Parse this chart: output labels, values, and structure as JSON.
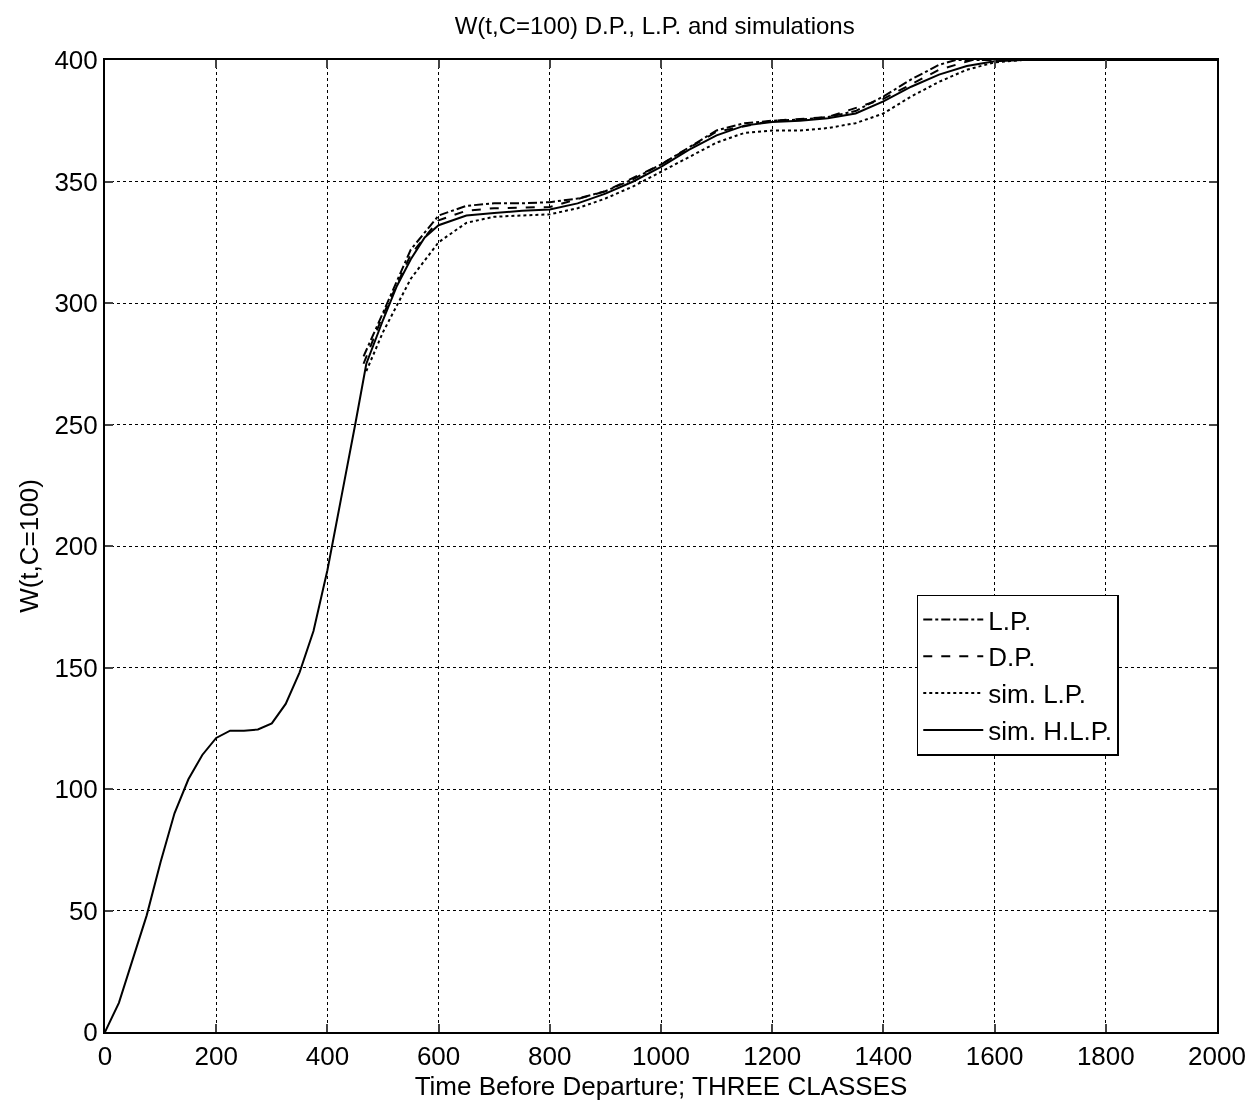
{
  "chart_data": {
    "type": "line",
    "title": "W(t,C=100) D.P., L.P. and simulations",
    "xlabel": "Time Before Departure; THREE CLASSES",
    "ylabel": "W(t,C=100)",
    "xlim": [
      0,
      2000
    ],
    "xticks": [
      0,
      200,
      400,
      600,
      800,
      1000,
      1200,
      1400,
      1600,
      1800,
      2000
    ],
    "ylim": [
      0,
      400
    ],
    "yticks": [
      0,
      50,
      100,
      150,
      200,
      250,
      300,
      350,
      400
    ],
    "grid": true,
    "legend": "right",
    "marker": "none",
    "series": [
      {
        "name": "L.P.",
        "color": "#000000",
        "line_style": "dashdot",
        "x": [
          465,
          500,
          550,
          600,
          650,
          700,
          750,
          800,
          850,
          900,
          950,
          1000,
          1050,
          1100,
          1150,
          1200,
          1250,
          1300,
          1350,
          1400,
          1450,
          1500,
          1530,
          2000
        ],
        "values": [
          278,
          296,
          322,
          336,
          340,
          341,
          341,
          341.5,
          343,
          346,
          351,
          357,
          364,
          371,
          374,
          375,
          375.5,
          376.5,
          379,
          385,
          392,
          398,
          400,
          400
        ]
      },
      {
        "name": "D.P.",
        "color": "#000000",
        "line_style": "dashed",
        "x": [
          465,
          500,
          550,
          600,
          650,
          700,
          800,
          900,
          1000,
          1100,
          1200,
          1300,
          1400,
          1500,
          1560,
          2000
        ],
        "values": [
          275,
          295,
          320,
          334,
          338,
          339,
          339.5,
          346,
          357,
          370.5,
          375,
          376.5,
          384,
          396,
          400,
          400
        ]
      },
      {
        "name": "sim. L.P.",
        "color": "#000000",
        "line_style": "dotted",
        "x": [
          470,
          500,
          550,
          600,
          650,
          700,
          750,
          800,
          850,
          900,
          950,
          1000,
          1050,
          1100,
          1150,
          1200,
          1250,
          1300,
          1350,
          1400,
          1450,
          1500,
          1550,
          1600,
          1650,
          2000
        ],
        "values": [
          272,
          288,
          310,
          325,
          333,
          335.5,
          336,
          336.5,
          339,
          343,
          348,
          354,
          360,
          366,
          370,
          371,
          371,
          372,
          374,
          378,
          385,
          391,
          396,
          399,
          400,
          400
        ]
      },
      {
        "name": "sim. H.L.P.",
        "color": "#000000",
        "line_style": "solid",
        "x": [
          0,
          25,
          50,
          75,
          100,
          125,
          150,
          175,
          200,
          225,
          250,
          275,
          300,
          325,
          350,
          375,
          400,
          425,
          450,
          470,
          500,
          525,
          550,
          575,
          600,
          650,
          700,
          750,
          800,
          850,
          900,
          950,
          1000,
          1050,
          1100,
          1150,
          1200,
          1250,
          1300,
          1350,
          1400,
          1450,
          1500,
          1550,
          1600,
          1650,
          2000
        ],
        "values": [
          0,
          12,
          30,
          48,
          70,
          90,
          104,
          114,
          121,
          124,
          124,
          124.5,
          127,
          135,
          148,
          165,
          190,
          220,
          250,
          275,
          293,
          307,
          318,
          327,
          332,
          336,
          337,
          338,
          338.5,
          341,
          345,
          350,
          356,
          363,
          369,
          373,
          374.5,
          375,
          376,
          378,
          383,
          389,
          394,
          397.5,
          399.5,
          400,
          400
        ]
      }
    ]
  }
}
